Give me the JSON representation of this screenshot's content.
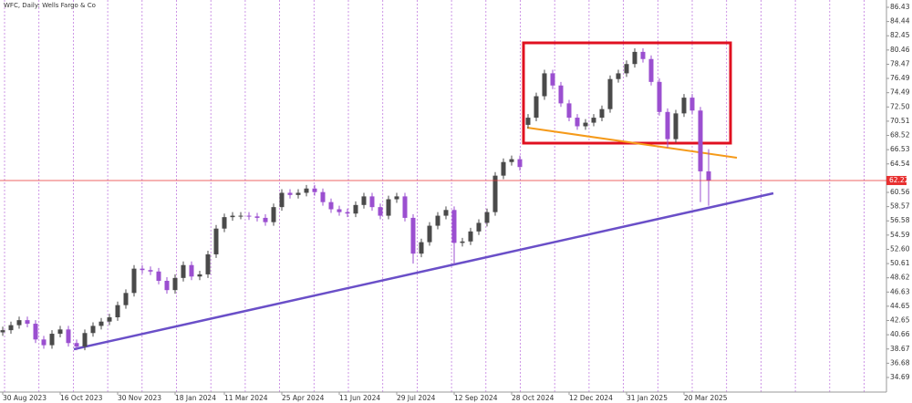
{
  "chart_data": {
    "type": "candlestick",
    "title": "WFC, Daily:  Wells Fargo & Co",
    "categories": [
      "30 Aug 2023",
      null,
      null,
      null,
      null,
      null,
      null,
      "16 Oct 2023",
      null,
      null,
      null,
      null,
      null,
      null,
      "30 Nov 2023",
      null,
      null,
      null,
      null,
      null,
      null,
      "18 Jan 2024",
      null,
      null,
      null,
      null,
      null,
      "11 Mar 2024",
      null,
      null,
      null,
      null,
      null,
      null,
      "25 Apr 2024",
      null,
      null,
      null,
      null,
      null,
      null,
      "11 Jun 2024",
      null,
      null,
      null,
      null,
      null,
      null,
      "29 Jul 2024",
      null,
      null,
      null,
      null,
      null,
      null,
      "12 Sep 2024",
      null,
      null,
      null,
      null,
      null,
      null,
      "28 Oct 2024",
      null,
      null,
      null,
      null,
      null,
      null,
      "12 Dec 2024",
      null,
      null,
      null,
      null,
      null,
      null,
      "31 Jan 2025",
      null,
      null,
      null,
      null,
      null,
      null,
      "20 Mar 2025",
      null,
      null,
      null
    ],
    "open": [
      41.0,
      41.3,
      42.0,
      42.7,
      42.2,
      40.0,
      39.2,
      40.8,
      41.4,
      39.5,
      39.0,
      40.9,
      41.9,
      42.5,
      43.1,
      44.8,
      46.5,
      49.9,
      49.7,
      49.5,
      48.2,
      46.9,
      48.6,
      50.4,
      48.8,
      49.1,
      51.9,
      55.5,
      57.1,
      57.3,
      57.3,
      57.2,
      57.0,
      56.4,
      58.5,
      60.5,
      60.2,
      60.5,
      61.1,
      60.6,
      59.2,
      58.2,
      57.8,
      57.6,
      58.8,
      60.0,
      58.5,
      57.3,
      59.6,
      60.0,
      57.0,
      52.0,
      53.6,
      55.9,
      57.3,
      58.1,
      53.5,
      53.7,
      55.1,
      56.3,
      57.8,
      62.9,
      64.8,
      65.2,
      70.0,
      71.0,
      74.0,
      77.2,
      75.5,
      73.0,
      71.0,
      69.8,
      70.3,
      71.0,
      72.2,
      76.4,
      77.2,
      78.5,
      80.2,
      79.2,
      76.0,
      71.8,
      68.0,
      71.6,
      73.8,
      72.0,
      63.5
    ],
    "high": [
      41.8,
      42.5,
      43.2,
      43.2,
      42.7,
      40.5,
      41.3,
      41.9,
      41.9,
      40.0,
      41.4,
      42.4,
      43.0,
      43.6,
      45.3,
      47.0,
      50.4,
      50.4,
      50.2,
      50.0,
      48.7,
      49.1,
      50.9,
      50.9,
      49.6,
      52.4,
      56.0,
      57.6,
      57.8,
      57.8,
      57.8,
      57.7,
      57.5,
      59.0,
      61.0,
      61.0,
      61.0,
      61.6,
      61.6,
      61.1,
      59.7,
      58.7,
      58.3,
      59.3,
      60.5,
      60.5,
      59.0,
      60.1,
      60.5,
      60.5,
      57.5,
      54.1,
      56.4,
      57.8,
      58.6,
      58.6,
      54.2,
      55.6,
      56.8,
      58.3,
      63.4,
      65.3,
      65.7,
      65.7,
      71.5,
      74.5,
      77.7,
      77.7,
      76.0,
      73.5,
      71.5,
      70.8,
      71.5,
      72.7,
      76.9,
      77.7,
      79.0,
      80.7,
      80.7,
      79.7,
      76.5,
      72.3,
      72.1,
      74.3,
      74.3,
      72.5,
      66.6
    ],
    "low": [
      40.5,
      40.8,
      41.5,
      41.7,
      39.5,
      38.7,
      38.7,
      40.3,
      39.0,
      38.5,
      38.5,
      40.4,
      41.4,
      42.0,
      42.6,
      44.3,
      46.0,
      49.2,
      49.0,
      47.7,
      46.4,
      46.4,
      48.1,
      48.3,
      48.3,
      48.6,
      51.4,
      55.0,
      56.6,
      56.8,
      56.7,
      56.5,
      55.9,
      55.9,
      58.0,
      59.7,
      59.7,
      60.0,
      60.1,
      58.7,
      57.7,
      57.3,
      57.1,
      57.1,
      58.3,
      58.0,
      56.8,
      56.8,
      59.1,
      56.5,
      50.6,
      51.5,
      53.1,
      55.4,
      56.8,
      50.5,
      53.0,
      53.2,
      54.6,
      55.8,
      57.3,
      62.4,
      64.3,
      63.6,
      69.5,
      70.5,
      73.5,
      75.0,
      72.5,
      70.5,
      69.3,
      69.3,
      69.8,
      70.5,
      71.7,
      75.9,
      76.7,
      78.0,
      78.7,
      75.5,
      71.3,
      66.8,
      67.5,
      71.1,
      71.5,
      59.2,
      58.7
    ],
    "close": [
      41.3,
      42.0,
      42.7,
      42.2,
      40.0,
      39.2,
      40.8,
      41.4,
      39.5,
      39.0,
      40.9,
      41.9,
      42.5,
      43.1,
      44.8,
      46.5,
      49.9,
      49.7,
      49.5,
      48.2,
      46.9,
      48.6,
      50.4,
      48.8,
      49.1,
      51.9,
      55.5,
      57.1,
      57.3,
      57.3,
      57.2,
      57.0,
      56.4,
      58.5,
      60.5,
      60.2,
      60.5,
      61.1,
      60.6,
      59.2,
      58.2,
      57.8,
      57.6,
      58.8,
      60.0,
      58.5,
      57.3,
      59.6,
      60.0,
      57.0,
      52.0,
      53.6,
      55.9,
      57.3,
      58.1,
      53.5,
      53.7,
      55.1,
      56.3,
      57.8,
      62.9,
      64.8,
      65.2,
      64.1,
      71.0,
      74.0,
      77.2,
      75.5,
      73.0,
      71.0,
      69.8,
      70.3,
      71.0,
      72.2,
      76.4,
      77.2,
      78.5,
      80.2,
      79.2,
      76.0,
      71.8,
      68.0,
      71.6,
      73.8,
      72.0,
      63.5,
      62.22
    ],
    "up_color": "#4a4a4a",
    "down_color": "#9b4fd0",
    "current_price": 62.22,
    "current_price_color": "#e83030",
    "ylim": [
      32.65,
      87.45
    ],
    "yticks": [
      86.43,
      84.44,
      82.45,
      80.46,
      78.47,
      76.49,
      74.49,
      {
        "value": 72.5,
        "label": "72.50"
      },
      70.51,
      68.52,
      66.53,
      64.54,
      60.56,
      58.57,
      56.58,
      54.59,
      {
        "value": 52.6,
        "label": "52.60"
      },
      50.61,
      48.62,
      46.63,
      44.65,
      42.65,
      40.66,
      38.67,
      36.68,
      34.69
    ]
  }
}
